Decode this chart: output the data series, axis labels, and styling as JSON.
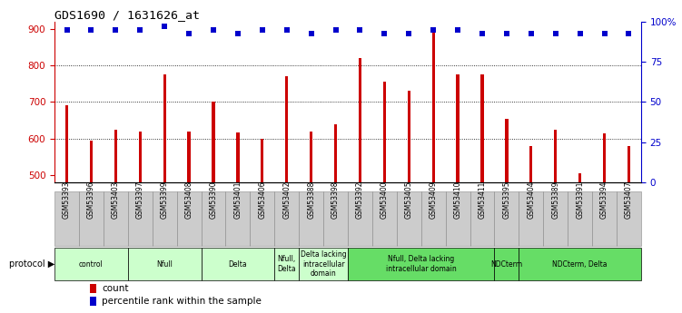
{
  "title": "GDS1690 / 1631626_at",
  "samples": [
    "GSM53393",
    "GSM53396",
    "GSM53403",
    "GSM53397",
    "GSM53399",
    "GSM53408",
    "GSM53390",
    "GSM53401",
    "GSM53406",
    "GSM53402",
    "GSM53388",
    "GSM53398",
    "GSM53392",
    "GSM53400",
    "GSM53405",
    "GSM53409",
    "GSM53410",
    "GSM53411",
    "GSM53395",
    "GSM53404",
    "GSM53389",
    "GSM53391",
    "GSM53394",
    "GSM53407"
  ],
  "counts": [
    690,
    593,
    625,
    620,
    775,
    620,
    700,
    616,
    598,
    770,
    620,
    638,
    820,
    755,
    730,
    900,
    775,
    775,
    655,
    580,
    625,
    505,
    615,
    578
  ],
  "percentiles": [
    95,
    95,
    95,
    95,
    97,
    93,
    95,
    93,
    95,
    95,
    93,
    95,
    95,
    93,
    93,
    95,
    95,
    93,
    93,
    93,
    93,
    93,
    93,
    93
  ],
  "bar_color": "#cc0000",
  "dot_color": "#0000cc",
  "ylim_left": [
    480,
    920
  ],
  "ylim_right": [
    0,
    100
  ],
  "yticks_left": [
    500,
    600,
    700,
    800,
    900
  ],
  "yticks_right": [
    0,
    25,
    50,
    75,
    100
  ],
  "grid_values": [
    600,
    700,
    800
  ],
  "protocol_groups": [
    {
      "label": "control",
      "start": 0,
      "end": 3,
      "color": "#ccffcc"
    },
    {
      "label": "Nfull",
      "start": 3,
      "end": 6,
      "color": "#ccffcc"
    },
    {
      "label": "Delta",
      "start": 6,
      "end": 9,
      "color": "#ccffcc"
    },
    {
      "label": "Nfull,\nDelta",
      "start": 9,
      "end": 10,
      "color": "#ccffcc"
    },
    {
      "label": "Delta lacking\nintracellular\ndomain",
      "start": 10,
      "end": 12,
      "color": "#ccffcc"
    },
    {
      "label": "Nfull, Delta lacking\nintracellular domain",
      "start": 12,
      "end": 18,
      "color": "#66dd66"
    },
    {
      "label": "NDCterm",
      "start": 18,
      "end": 19,
      "color": "#66dd66"
    },
    {
      "label": "NDCterm, Delta",
      "start": 19,
      "end": 24,
      "color": "#66dd66"
    }
  ],
  "legend_count_label": "count",
  "legend_pct_label": "percentile rank within the sample",
  "bar_width": 0.12
}
